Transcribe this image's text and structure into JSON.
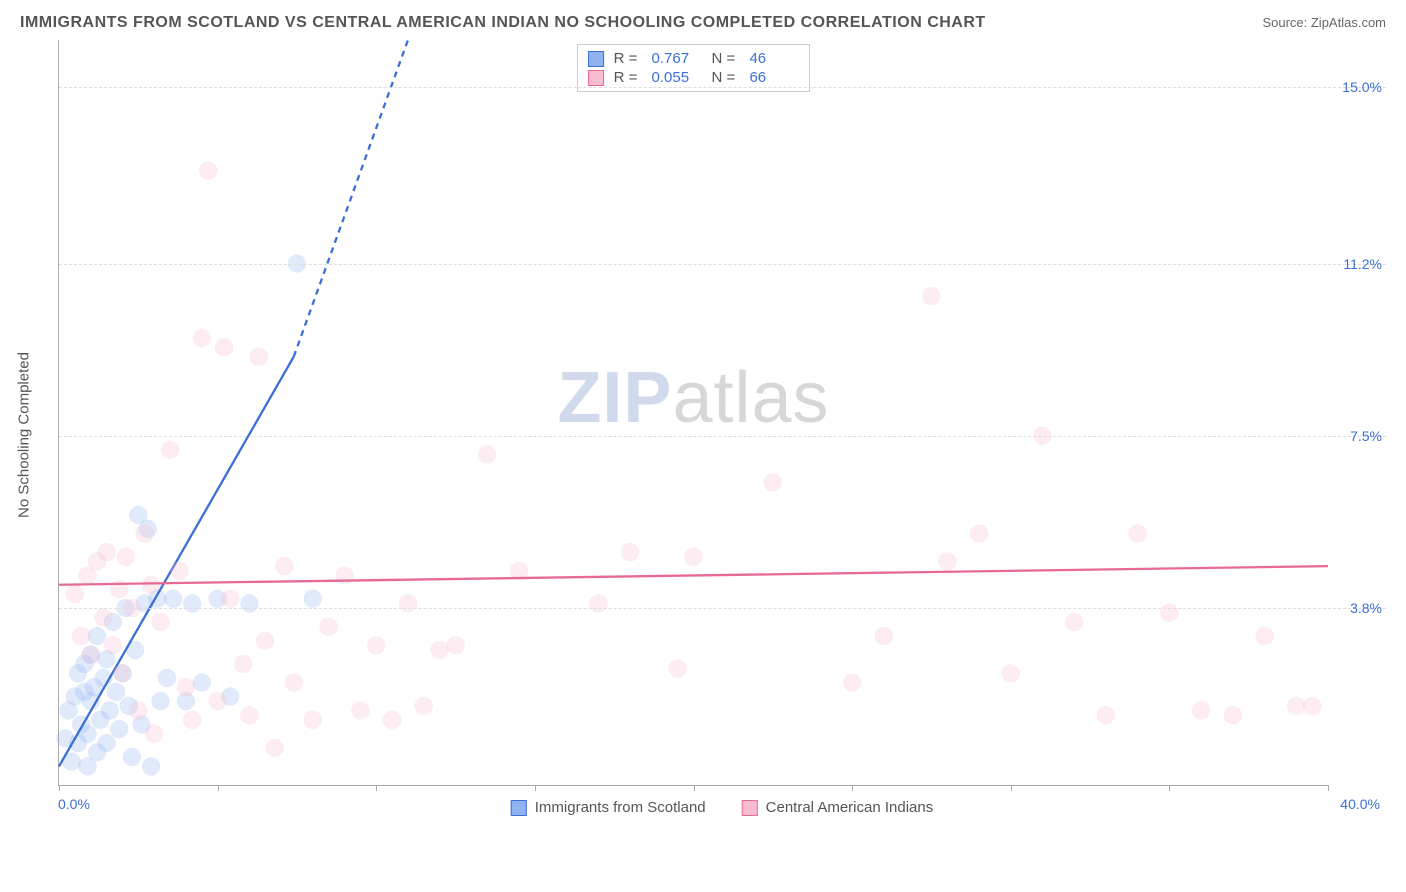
{
  "title": "IMMIGRANTS FROM SCOTLAND VS CENTRAL AMERICAN INDIAN NO SCHOOLING COMPLETED CORRELATION CHART",
  "source_label": "Source: ZipAtlas.com",
  "y_axis_label": "No Schooling Completed",
  "watermark": {
    "z": "ZIP",
    "rest": "atlas"
  },
  "chart": {
    "type": "scatter",
    "background_color": "#ffffff",
    "axis_color": "#aaaaaa",
    "grid_color": "#dddddd",
    "grid_dash": "4,4",
    "xlim": [
      0,
      40
    ],
    "ylim": [
      0,
      16
    ],
    "x_tick_positions": [
      0,
      5,
      10,
      15,
      20,
      25,
      30,
      35,
      40
    ],
    "x_tick_labels_shown": {
      "min": "0.0%",
      "max": "40.0%"
    },
    "y_ticks": [
      {
        "value": 3.8,
        "label": "3.8%"
      },
      {
        "value": 7.5,
        "label": "7.5%"
      },
      {
        "value": 11.2,
        "label": "11.2%"
      },
      {
        "value": 15.0,
        "label": "15.0%"
      }
    ],
    "marker_radius": 9,
    "marker_stroke_width": 1.2,
    "marker_fill_opacity": 0.28,
    "series": [
      {
        "key": "scotland",
        "label": "Immigrants from Scotland",
        "stroke": "#3b6fd6",
        "fill": "#8fb3ef",
        "R": "0.767",
        "N": "46",
        "trend": {
          "x1": 0,
          "y1": 0.4,
          "x2": 11,
          "y2": 16.0,
          "solid_until_x": 7.4,
          "solid_until_y": 9.2,
          "width": 2.3,
          "dash": "6,5"
        },
        "points": [
          [
            0.2,
            1.0
          ],
          [
            0.3,
            1.6
          ],
          [
            0.4,
            0.5
          ],
          [
            0.5,
            1.9
          ],
          [
            0.6,
            2.4
          ],
          [
            0.6,
            0.9
          ],
          [
            0.7,
            1.3
          ],
          [
            0.8,
            2.0
          ],
          [
            0.8,
            2.6
          ],
          [
            0.9,
            1.1
          ],
          [
            0.9,
            0.4
          ],
          [
            1.0,
            1.8
          ],
          [
            1.0,
            2.8
          ],
          [
            1.1,
            2.1
          ],
          [
            1.2,
            0.7
          ],
          [
            1.2,
            3.2
          ],
          [
            1.3,
            1.4
          ],
          [
            1.4,
            2.3
          ],
          [
            1.5,
            0.9
          ],
          [
            1.5,
            2.7
          ],
          [
            1.6,
            1.6
          ],
          [
            1.7,
            3.5
          ],
          [
            1.8,
            2.0
          ],
          [
            1.9,
            1.2
          ],
          [
            2.0,
            2.4
          ],
          [
            2.1,
            3.8
          ],
          [
            2.2,
            1.7
          ],
          [
            2.3,
            0.6
          ],
          [
            2.4,
            2.9
          ],
          [
            2.6,
            1.3
          ],
          [
            2.7,
            3.9
          ],
          [
            2.9,
            0.4
          ],
          [
            3.1,
            4.0
          ],
          [
            3.2,
            1.8
          ],
          [
            3.4,
            2.3
          ],
          [
            2.5,
            5.8
          ],
          [
            2.8,
            5.5
          ],
          [
            3.6,
            4.0
          ],
          [
            4.0,
            1.8
          ],
          [
            4.2,
            3.9
          ],
          [
            4.5,
            2.2
          ],
          [
            5.0,
            4.0
          ],
          [
            5.4,
            1.9
          ],
          [
            6.0,
            3.9
          ],
          [
            8.0,
            4.0
          ],
          [
            7.5,
            11.2
          ]
        ]
      },
      {
        "key": "cai",
        "label": "Central American Indians",
        "stroke": "#e86a92",
        "fill": "#f7bccd",
        "R": "0.055",
        "N": "66",
        "trend": {
          "x1": 0,
          "y1": 4.3,
          "x2": 40,
          "y2": 4.7,
          "width": 2.3
        },
        "points": [
          [
            0.5,
            4.1
          ],
          [
            0.7,
            3.2
          ],
          [
            0.9,
            4.5
          ],
          [
            1.0,
            2.8
          ],
          [
            1.2,
            4.8
          ],
          [
            1.4,
            3.6
          ],
          [
            1.5,
            5.0
          ],
          [
            1.7,
            3.0
          ],
          [
            1.9,
            4.2
          ],
          [
            2.0,
            2.4
          ],
          [
            2.1,
            4.9
          ],
          [
            2.3,
            3.8
          ],
          [
            2.5,
            1.6
          ],
          [
            2.7,
            5.4
          ],
          [
            2.9,
            4.3
          ],
          [
            3.0,
            1.1
          ],
          [
            3.2,
            3.5
          ],
          [
            3.5,
            7.2
          ],
          [
            3.8,
            4.6
          ],
          [
            4.0,
            2.1
          ],
          [
            4.2,
            1.4
          ],
          [
            4.5,
            9.6
          ],
          [
            4.7,
            13.2
          ],
          [
            5.0,
            1.8
          ],
          [
            5.2,
            9.4
          ],
          [
            5.4,
            4.0
          ],
          [
            5.8,
            2.6
          ],
          [
            6.0,
            1.5
          ],
          [
            6.3,
            9.2
          ],
          [
            6.5,
            3.1
          ],
          [
            6.8,
            0.8
          ],
          [
            7.1,
            4.7
          ],
          [
            7.4,
            2.2
          ],
          [
            8.0,
            1.4
          ],
          [
            8.5,
            3.4
          ],
          [
            9.0,
            4.5
          ],
          [
            9.5,
            1.6
          ],
          [
            10.0,
            3.0
          ],
          [
            10.5,
            1.4
          ],
          [
            11.0,
            3.9
          ],
          [
            11.5,
            1.7
          ],
          [
            12.0,
            2.9
          ],
          [
            12.5,
            3.0
          ],
          [
            13.5,
            7.1
          ],
          [
            14.5,
            4.6
          ],
          [
            17.0,
            3.9
          ],
          [
            18.0,
            5.0
          ],
          [
            19.5,
            2.5
          ],
          [
            20.0,
            4.9
          ],
          [
            22.5,
            6.5
          ],
          [
            25.0,
            2.2
          ],
          [
            26.0,
            3.2
          ],
          [
            27.5,
            10.5
          ],
          [
            28.0,
            4.8
          ],
          [
            29.0,
            5.4
          ],
          [
            30.0,
            2.4
          ],
          [
            31.0,
            7.5
          ],
          [
            32.0,
            3.5
          ],
          [
            33.0,
            1.5
          ],
          [
            34.0,
            5.4
          ],
          [
            35.0,
            3.7
          ],
          [
            36.0,
            1.6
          ],
          [
            37.0,
            1.5
          ],
          [
            38.0,
            3.2
          ],
          [
            39.0,
            1.7
          ],
          [
            39.5,
            1.7
          ]
        ]
      }
    ]
  }
}
